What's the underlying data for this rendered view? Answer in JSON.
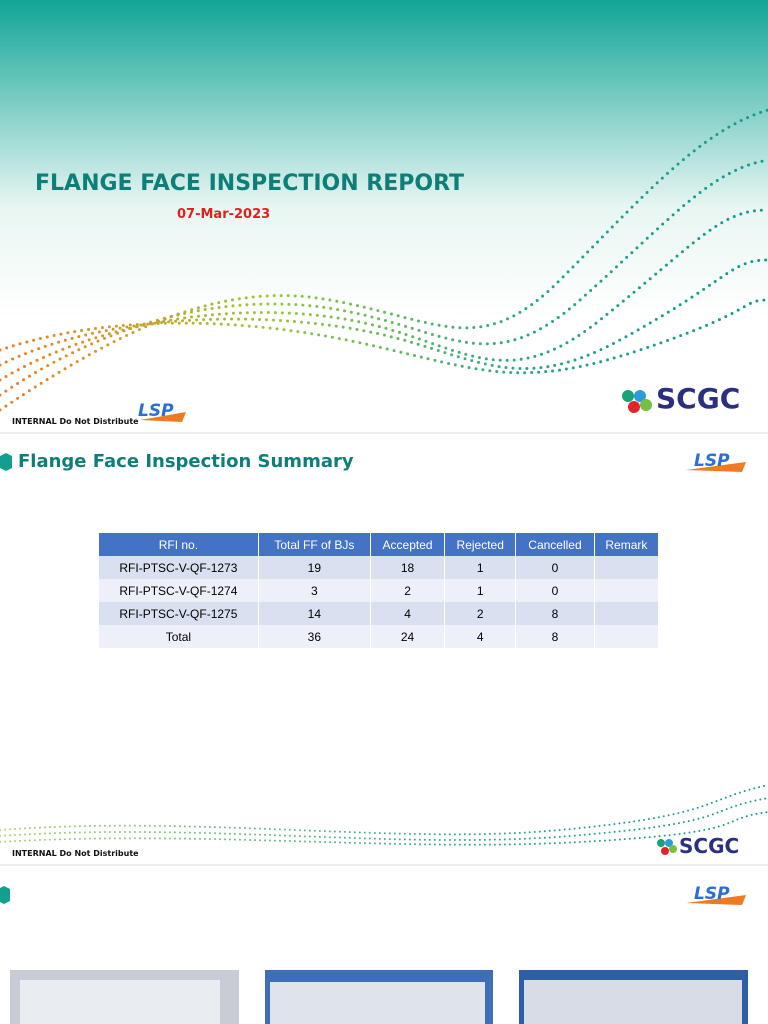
{
  "slide1": {
    "title": "FLANGE FACE INSPECTION REPORT",
    "date": "07-Mar-2023",
    "footer": "INTERNAL Do Not Distribute",
    "lsp_logo": "LSP",
    "scgc_logo": "SCGC"
  },
  "slide2": {
    "heading": "Flange Face Inspection Summary",
    "lsp_logo": "LSP",
    "table": {
      "columns": [
        "RFI no.",
        "Total FF of BJs",
        "Accepted",
        "Rejected",
        "Cancelled",
        "Remark"
      ],
      "rows": [
        [
          "RFI-PTSC-V-QF-1273",
          19,
          18,
          1,
          0
        ],
        [
          "RFI-PTSC-V-QF-1274",
          3,
          2,
          1,
          0
        ],
        [
          "RFI-PTSC-V-QF-1275",
          14,
          4,
          2,
          8
        ],
        [
          "Total",
          36,
          24,
          4,
          8
        ]
      ]
    },
    "footer": "INTERNAL Do Not Distribute",
    "scgc_logo": "SCGC"
  },
  "slide3": {
    "lsp_logo": "LSP"
  }
}
